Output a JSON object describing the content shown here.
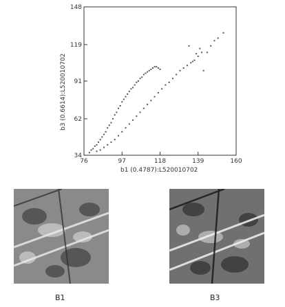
{
  "chart_data": {
    "type": "scatter",
    "title": "",
    "xlabel": "b1 (0.4787):L520010702",
    "ylabel": "b3 (0.6614):L520010702",
    "xlim": [
      76,
      160
    ],
    "ylim": [
      34,
      148
    ],
    "x_ticks": [
      "76",
      "97",
      "118",
      "139",
      "160"
    ],
    "y_ticks": [
      "34",
      "62",
      "91",
      "119",
      "148"
    ],
    "grid": false,
    "legend": "none",
    "series": [
      {
        "points": [
          [
            79,
            36
          ],
          [
            80,
            38
          ],
          [
            81,
            39
          ],
          [
            82,
            41
          ],
          [
            83,
            42
          ],
          [
            84,
            44
          ],
          [
            85,
            46
          ],
          [
            86,
            48
          ],
          [
            87,
            50
          ],
          [
            88,
            52
          ],
          [
            89,
            55
          ],
          [
            90,
            57
          ],
          [
            91,
            59
          ],
          [
            92,
            62
          ],
          [
            93,
            65
          ],
          [
            94,
            67
          ],
          [
            95,
            70
          ],
          [
            96,
            72
          ],
          [
            97,
            75
          ],
          [
            98,
            77
          ],
          [
            99,
            79
          ],
          [
            100,
            81
          ],
          [
            101,
            83
          ],
          [
            102,
            85
          ],
          [
            103,
            86
          ],
          [
            104,
            88
          ],
          [
            105,
            90
          ],
          [
            106,
            91
          ],
          [
            107,
            93
          ],
          [
            108,
            94
          ],
          [
            109,
            96
          ],
          [
            110,
            97
          ],
          [
            111,
            98
          ],
          [
            112,
            99
          ],
          [
            113,
            100
          ],
          [
            114,
            101
          ],
          [
            115,
            102
          ],
          [
            116,
            102
          ],
          [
            117,
            101
          ],
          [
            118,
            100
          ],
          [
            83,
            37
          ],
          [
            85,
            38
          ],
          [
            87,
            40
          ],
          [
            89,
            42
          ],
          [
            91,
            44
          ],
          [
            93,
            46
          ],
          [
            95,
            49
          ],
          [
            97,
            52
          ],
          [
            99,
            55
          ],
          [
            101,
            58
          ],
          [
            103,
            61
          ],
          [
            105,
            64
          ],
          [
            107,
            67
          ],
          [
            109,
            70
          ],
          [
            111,
            73
          ],
          [
            113,
            76
          ],
          [
            115,
            79
          ],
          [
            117,
            82
          ],
          [
            119,
            85
          ],
          [
            121,
            88
          ],
          [
            123,
            90
          ],
          [
            125,
            93
          ],
          [
            127,
            96
          ],
          [
            129,
            99
          ],
          [
            131,
            101
          ],
          [
            133,
            103
          ],
          [
            135,
            105
          ],
          [
            137,
            107
          ],
          [
            139,
            110
          ],
          [
            141,
            113
          ],
          [
            142,
            99
          ],
          [
            144,
            113
          ],
          [
            146,
            118
          ],
          [
            148,
            122
          ],
          [
            150,
            124
          ],
          [
            153,
            128
          ],
          [
            138,
            112
          ],
          [
            136,
            106
          ],
          [
            140,
            116
          ],
          [
            134,
            118
          ]
        ],
        "color": "#555555"
      }
    ]
  },
  "images": [
    {
      "caption": "B1"
    },
    {
      "caption": "B3"
    }
  ]
}
